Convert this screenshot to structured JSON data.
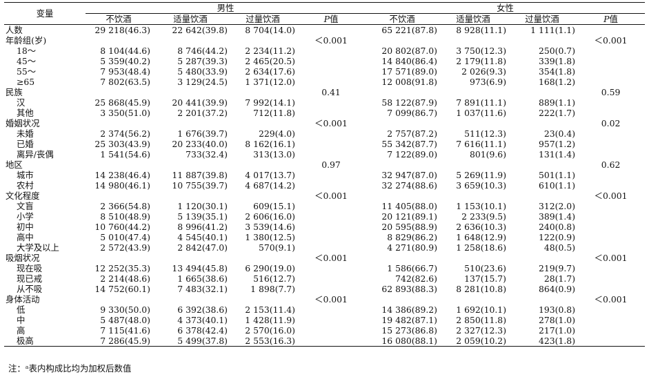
{
  "header": {
    "variable": "变量",
    "male": "男性",
    "female": "女性",
    "cols": [
      "不饮酒",
      "适量饮酒",
      "过量饮酒"
    ],
    "p_italic": "P",
    "p_rest": "值"
  },
  "rows": [
    {
      "label": "人数",
      "indent": false,
      "m": [
        "29 218(46.3)",
        "22 642(39.8)",
        "8 704(14.0)"
      ],
      "mp": "",
      "f": [
        "65 221(87.8)",
        "8 928(11.1)",
        "1 111(1.1)"
      ],
      "fp": ""
    },
    {
      "label": "年龄组(岁)",
      "indent": false,
      "m": [
        "",
        "",
        ""
      ],
      "mp": "＜0.001",
      "f": [
        "",
        "",
        ""
      ],
      "fp": "＜0.001"
    },
    {
      "label": "18～",
      "indent": true,
      "m": [
        "8 104(44.6)",
        "8 746(44.2)",
        "2 234(11.2)"
      ],
      "mp": "",
      "f": [
        "20 802(87.0)",
        "3 750(12.3)",
        "250(0.7)"
      ],
      "fp": ""
    },
    {
      "label": "45～",
      "indent": true,
      "m": [
        "5 359(40.2)",
        "5 287(39.3)",
        "2 465(20.5)"
      ],
      "mp": "",
      "f": [
        "14 840(86.4)",
        "2 179(11.8)",
        "339(1.8)"
      ],
      "fp": ""
    },
    {
      "label": "55～",
      "indent": true,
      "m": [
        "7 953(48.4)",
        "5 480(33.9)",
        "2 634(17.6)"
      ],
      "mp": "",
      "f": [
        "17 571(89.0)",
        "2 026(9.3)",
        "354(1.8)"
      ],
      "fp": ""
    },
    {
      "label": "≥65",
      "indent": true,
      "m": [
        "7 802(63.5)",
        "3 129(24.5)",
        "1 371(12.0)"
      ],
      "mp": "",
      "f": [
        "12 008(91.8)",
        "973(6.9)",
        "168(1.2)"
      ],
      "fp": ""
    },
    {
      "label": "民族",
      "indent": false,
      "m": [
        "",
        "",
        ""
      ],
      "mp": "0.41",
      "f": [
        "",
        "",
        ""
      ],
      "fp": "0.59"
    },
    {
      "label": "汉",
      "indent": true,
      "m": [
        "25 868(45.9)",
        "20 441(39.9)",
        "7 992(14.1)"
      ],
      "mp": "",
      "f": [
        "58 122(87.9)",
        "7 891(11.1)",
        "889(1.1)"
      ],
      "fp": ""
    },
    {
      "label": "其他",
      "indent": true,
      "m": [
        "3 350(51.0)",
        "2 201(37.2)",
        "712(11.8)"
      ],
      "mp": "",
      "f": [
        "7 099(86.7)",
        "1 037(11.6)",
        "222(1.7)"
      ],
      "fp": ""
    },
    {
      "label": "婚姻状况",
      "indent": false,
      "m": [
        "",
        "",
        ""
      ],
      "mp": "＜0.001",
      "f": [
        "",
        "",
        ""
      ],
      "fp": "0.02"
    },
    {
      "label": "未婚",
      "indent": true,
      "m": [
        "2 374(56.2)",
        "1 676(39.7)",
        "229(4.0)"
      ],
      "mp": "",
      "f": [
        "2 757(87.2)",
        "511(12.3)",
        "23(0.4)"
      ],
      "fp": ""
    },
    {
      "label": "已婚",
      "indent": true,
      "m": [
        "25 303(43.9)",
        "20 233(40.0)",
        "8 162(16.1)"
      ],
      "mp": "",
      "f": [
        "55 342(87.7)",
        "7 616(11.1)",
        "957(1.2)"
      ],
      "fp": ""
    },
    {
      "label": "离异/丧偶",
      "indent": true,
      "m": [
        "1 541(54.6)",
        "733(32.4)",
        "313(13.0)"
      ],
      "mp": "",
      "f": [
        "7 122(89.0)",
        "801(9.6)",
        "131(1.4)"
      ],
      "fp": ""
    },
    {
      "label": "地区",
      "indent": false,
      "m": [
        "",
        "",
        ""
      ],
      "mp": "0.97",
      "f": [
        "",
        "",
        ""
      ],
      "fp": "0.62"
    },
    {
      "label": "城市",
      "indent": true,
      "m": [
        "14 238(46.4)",
        "11 887(39.8)",
        "4 017(13.7)"
      ],
      "mp": "",
      "f": [
        "32 947(87.0)",
        "5 269(11.9)",
        "501(1.1)"
      ],
      "fp": ""
    },
    {
      "label": "农村",
      "indent": true,
      "m": [
        "14 980(46.1)",
        "10 755(39.7)",
        "4 687(14.2)"
      ],
      "mp": "",
      "f": [
        "32 274(88.6)",
        "3 659(10.3)",
        "610(1.1)"
      ],
      "fp": ""
    },
    {
      "label": "文化程度",
      "indent": false,
      "m": [
        "",
        "",
        ""
      ],
      "mp": "＜0.001",
      "f": [
        "",
        "",
        ""
      ],
      "fp": "＜0.001"
    },
    {
      "label": "文盲",
      "indent": true,
      "m": [
        "2 366(54.8)",
        "1 120(30.1)",
        "609(15.1)"
      ],
      "mp": "",
      "f": [
        "11 405(88.0)",
        "1 153(10.1)",
        "312(2.0)"
      ],
      "fp": ""
    },
    {
      "label": "小学",
      "indent": true,
      "m": [
        "8 510(48.9)",
        "5 139(35.1)",
        "2 606(16.0)"
      ],
      "mp": "",
      "f": [
        "20 121(89.1)",
        "2 233(9.5)",
        "389(1.4)"
      ],
      "fp": ""
    },
    {
      "label": "初中",
      "indent": true,
      "m": [
        "10 760(44.2)",
        "8 996(41.2)",
        "3 539(14.6)"
      ],
      "mp": "",
      "f": [
        "20 595(88.9)",
        "2 636(10.3)",
        "240(0.8)"
      ],
      "fp": ""
    },
    {
      "label": "高中",
      "indent": true,
      "m": [
        "5 010(47.4)",
        "4 545(40.1)",
        "1 380(12.5)"
      ],
      "mp": "",
      "f": [
        "8 829(86.2)",
        "1 648(12.9)",
        "122(0.9)"
      ],
      "fp": ""
    },
    {
      "label": "大学及以上",
      "indent": true,
      "m": [
        "2 572(43.9)",
        "2 842(47.0)",
        "570(9.1)"
      ],
      "mp": "",
      "f": [
        "4 271(80.9)",
        "1 258(18.6)",
        "48(0.5)"
      ],
      "fp": ""
    },
    {
      "label": "吸烟状况",
      "indent": false,
      "m": [
        "",
        "",
        ""
      ],
      "mp": "＜0.001",
      "f": [
        "",
        "",
        ""
      ],
      "fp": "＜0.001"
    },
    {
      "label": "现在吸",
      "indent": true,
      "m": [
        "12 252(35.3)",
        "13 494(45.8)",
        "6 290(19.0)"
      ],
      "mp": "",
      "f": [
        "1 586(66.7)",
        "510(23.6)",
        "219(9.7)"
      ],
      "fp": ""
    },
    {
      "label": "现已戒",
      "indent": true,
      "m": [
        "2 214(48.6)",
        "1 665(38.6)",
        "516(12.7)"
      ],
      "mp": "",
      "f": [
        "742(82.6)",
        "137(15.7)",
        "28(1.7)"
      ],
      "fp": ""
    },
    {
      "label": "从不吸",
      "indent": true,
      "m": [
        "14 752(60.1)",
        "7 483(32.1)",
        "1 898(7.7)"
      ],
      "mp": "",
      "f": [
        "62 893(88.3)",
        "8 281(10.8)",
        "864(0.9)"
      ],
      "fp": ""
    },
    {
      "label": "身体活动",
      "indent": false,
      "m": [
        "",
        "",
        ""
      ],
      "mp": "＜0.001",
      "f": [
        "",
        "",
        ""
      ],
      "fp": "＜0.001"
    },
    {
      "label": "低",
      "indent": true,
      "m": [
        "9 330(50.0)",
        "6 392(38.6)",
        "2 153(11.4)"
      ],
      "mp": "",
      "f": [
        "14 386(89.2)",
        "1 692(10.1)",
        "193(0.8)"
      ],
      "fp": ""
    },
    {
      "label": "中",
      "indent": true,
      "m": [
        "5 487(48.0)",
        "4 373(40.1)",
        "1 428(11.9)"
      ],
      "mp": "",
      "f": [
        "19 482(87.1)",
        "2 850(11.8)",
        "278(1.0)"
      ],
      "fp": ""
    },
    {
      "label": "高",
      "indent": true,
      "m": [
        "7 115(41.6)",
        "6 378(42.4)",
        "2 570(16.0)"
      ],
      "mp": "",
      "f": [
        "15 273(86.8)",
        "2 327(12.3)",
        "217(1.0)"
      ],
      "fp": ""
    },
    {
      "label": "极高",
      "indent": true,
      "m": [
        "7 286(45.9)",
        "5 499(37.8)",
        "2 553(16.3)"
      ],
      "mp": "",
      "f": [
        "16 080(88.1)",
        "2 059(10.2)",
        "423(1.8)"
      ],
      "fp": ""
    }
  ],
  "footnote": "注：ᵃ表内构成比均为加权后数值"
}
